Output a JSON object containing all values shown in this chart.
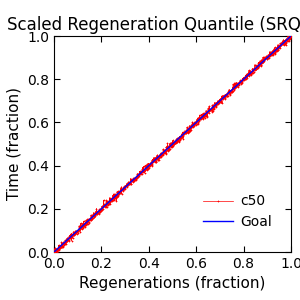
{
  "title": "Scaled Regeneration Quantile (SRQ) plo",
  "xlabel": "Regenerations (fraction)",
  "ylabel": "Time (fraction)",
  "xlim": [
    0,
    1
  ],
  "ylim": [
    0,
    1
  ],
  "xticks": [
    0,
    0.2,
    0.4,
    0.6,
    0.8,
    1
  ],
  "yticks": [
    0,
    0.2,
    0.4,
    0.6,
    0.8,
    1
  ],
  "goal_color": "#0000ff",
  "c50_color": "#ff0000",
  "legend_labels": [
    "c50",
    "Goal"
  ],
  "n_points": 1000,
  "noise_scale": 0.008,
  "title_fontsize": 12,
  "label_fontsize": 11,
  "tick_fontsize": 10,
  "legend_fontsize": 10,
  "background_color": "#ffffff"
}
